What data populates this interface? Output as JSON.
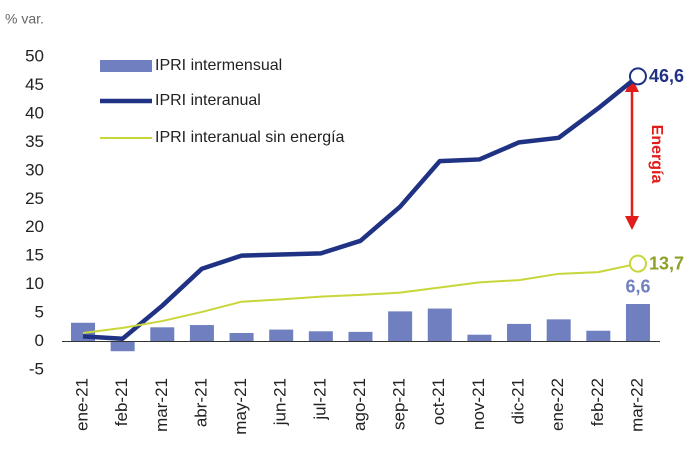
{
  "chart_data": {
    "type": "bar-line",
    "unit_label": "% var.",
    "annotation": "Energía",
    "categories": [
      "ene-21",
      "feb-21",
      "mar-21",
      "abr-21",
      "may-21",
      "jun-21",
      "jul-21",
      "ago-21",
      "sep-21",
      "oct-21",
      "nov-21",
      "dic-21",
      "ene-22",
      "feb-22",
      "mar-22"
    ],
    "series": [
      {
        "name": "IPRI intermensual",
        "kind": "bar",
        "color": "#6f7fbf",
        "label_color": "#6f7fbf",
        "values": [
          3.3,
          -1.7,
          2.5,
          2.9,
          1.5,
          2.1,
          1.8,
          1.7,
          5.3,
          5.8,
          1.2,
          3.1,
          3.9,
          1.9,
          6.6
        ],
        "value_labels": [
          null,
          null,
          null,
          null,
          null,
          null,
          null,
          null,
          null,
          null,
          null,
          null,
          null,
          null,
          "6,6"
        ]
      },
      {
        "name": "IPRI interanual",
        "kind": "line",
        "color": "#1f3283",
        "label_color": "#1f3283",
        "values": [
          0.9,
          0.5,
          6.3,
          12.8,
          15.1,
          15.3,
          15.5,
          17.7,
          23.7,
          31.7,
          32.0,
          35.0,
          35.8,
          41.0,
          46.6
        ],
        "value_labels": [
          null,
          null,
          null,
          null,
          null,
          null,
          null,
          null,
          null,
          null,
          null,
          null,
          null,
          null,
          "46,6"
        ]
      },
      {
        "name": "IPRI interanual sin energía",
        "kind": "line",
        "color": "#c8d63a",
        "label_color": "#8fa02a",
        "values": [
          1.5,
          2.4,
          3.6,
          5.2,
          7.0,
          7.4,
          7.9,
          8.2,
          8.6,
          9.5,
          10.4,
          10.8,
          11.9,
          12.2,
          13.7
        ],
        "value_labels": [
          null,
          null,
          null,
          null,
          null,
          null,
          null,
          null,
          null,
          null,
          null,
          null,
          null,
          null,
          "13,7"
        ]
      }
    ],
    "ylim": [
      -5,
      50
    ],
    "yticks": [
      -5,
      0,
      5,
      10,
      15,
      20,
      25,
      30,
      35,
      40,
      45,
      50
    ]
  }
}
